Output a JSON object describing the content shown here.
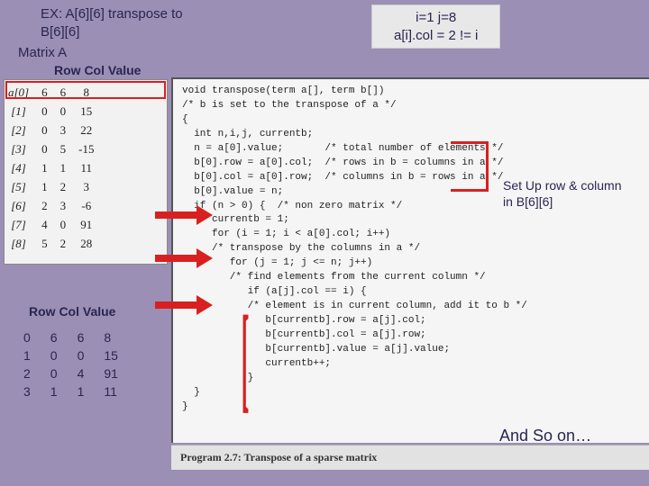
{
  "title_line1": "EX: A[6][6] transpose to",
  "title_line2": "B[6][6]",
  "state_line1": "i=1 j=8",
  "state_line2": "a[i].col = 2 != i",
  "matrix_label": "Matrix A",
  "header_rowcolvalue": "Row Col Value",
  "annotation_setup_l1": "Set Up row & column",
  "annotation_setup_l2": "in B[6][6]",
  "andsoon": "And So on…",
  "program_caption": "Program 2.7: Transpose of a sparse matrix",
  "matrixA": {
    "idx": [
      "a[0]",
      "[1]",
      "[2]",
      "[3]",
      "[4]",
      "[5]",
      "[6]",
      "[7]",
      "[8]"
    ],
    "row": [
      "6",
      "0",
      "0",
      "0",
      "1",
      "1",
      "2",
      "4",
      "5"
    ],
    "col": [
      "6",
      "0",
      "3",
      "5",
      "1",
      "2",
      "3",
      "0",
      "2"
    ],
    "val": [
      "8",
      "15",
      "22",
      "-15",
      "11",
      "3",
      "-6",
      "91",
      "28"
    ]
  },
  "code": "void transpose(term a[], term b[])\n/* b is set to the transpose of a */\n{\n  int n,i,j, currentb;\n  n = a[0].value;       /* total number of elements */\n  b[0].row = a[0].col;  /* rows in b = columns in a */\n  b[0].col = a[0].row;  /* columns in b = rows in a */\n  b[0].value = n;\n  if (n > 0) {  /* non zero matrix */\n     currentb = 1;\n     for (i = 1; i < a[0].col; i++)\n     /* transpose by the columns in a */\n        for (j = 1; j <= n; j++)\n        /* find elements from the current column */\n           if (a[j].col == i) {\n           /* element is in current column, add it to b */\n              b[currentb].row = a[j].col;\n              b[currentb].col = a[j].row;\n              b[currentb].value = a[j].value;\n              currentb++;\n           }\n  }\n}",
  "tableB": {
    "rows": [
      [
        "0",
        "6",
        "6",
        "8"
      ],
      [
        "1",
        "0",
        "0",
        "15"
      ],
      [
        "2",
        "0",
        "4",
        "91"
      ],
      [
        "3",
        "1",
        "1",
        "11"
      ]
    ]
  },
  "colors": {
    "bg": "#9b8fb5",
    "text": "#2a2550",
    "red": "#d82020",
    "panel": "#f5f5f5"
  }
}
